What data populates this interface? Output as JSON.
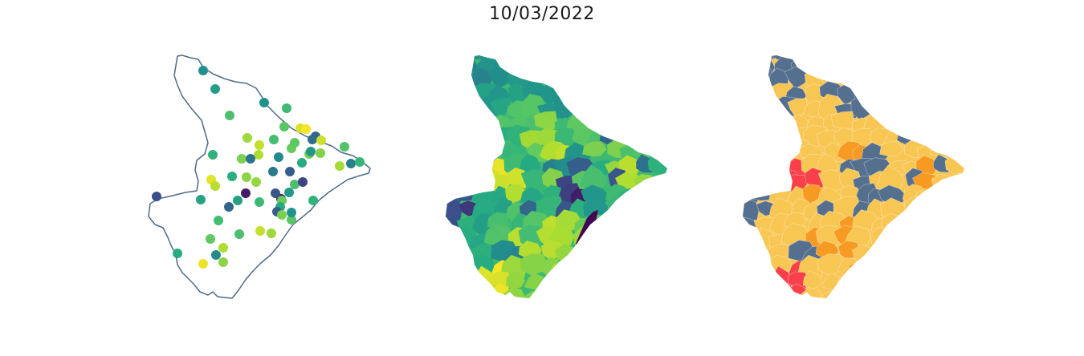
{
  "figure": {
    "title": "10/03/2022"
  },
  "colors": {
    "outline": "#4f6a86",
    "viridis": [
      "#440154",
      "#3b528b",
      "#21908c",
      "#27ad81",
      "#5ec962",
      "#aadc32",
      "#fde725"
    ],
    "classes": {
      "low": "#55708f",
      "moderate": "#f8c653",
      "high": "#f79a21",
      "very_high": "#f8404a"
    }
  },
  "panels": [
    {
      "name": "station-points-map"
    },
    {
      "name": "viridis-choropleth-map"
    },
    {
      "name": "risk-class-choropleth-map"
    }
  ],
  "stations": [
    {
      "id": 1,
      "v": 3.2
    },
    {
      "id": 2,
      "v": 3.6
    },
    {
      "id": 3,
      "v": 4.6
    },
    {
      "id": 4,
      "v": 3.3
    },
    {
      "id": 5,
      "v": 4.4
    },
    {
      "id": 6,
      "v": 5.6
    },
    {
      "id": 7,
      "v": 4.8
    },
    {
      "id": 8,
      "v": 6.2
    },
    {
      "id": 9,
      "v": 6.5
    },
    {
      "id": 10,
      "v": 2.6
    },
    {
      "id": 11,
      "v": 5.0
    },
    {
      "id": 12,
      "v": 6.0
    },
    {
      "id": 13,
      "v": 4.5
    },
    {
      "id": 14,
      "v": 5.8
    },
    {
      "id": 15,
      "v": 2.7
    },
    {
      "id": 16,
      "v": 4.9
    },
    {
      "id": 17,
      "v": 5.1
    },
    {
      "id": 18,
      "v": 5.3
    },
    {
      "id": 19,
      "v": 4.2
    },
    {
      "id": 20,
      "v": 5.2
    },
    {
      "id": 21,
      "v": 2.8
    },
    {
      "id": 22,
      "v": 3.1
    },
    {
      "id": 23,
      "v": 2.5
    },
    {
      "id": 24,
      "v": 6.3
    },
    {
      "id": 25,
      "v": 5.9
    },
    {
      "id": 26,
      "v": 4.1
    },
    {
      "id": 27,
      "v": 5.4
    },
    {
      "id": 28,
      "v": 4.0
    },
    {
      "id": 29,
      "v": 3.4
    },
    {
      "id": 30,
      "v": 6.1
    },
    {
      "id": 31,
      "v": 5.7
    },
    {
      "id": 32,
      "v": 4.7
    },
    {
      "id": 33,
      "v": 3.0
    },
    {
      "id": 34,
      "v": 4.3
    },
    {
      "id": 35,
      "v": 2.9
    },
    {
      "id": 36,
      "v": 5.5
    },
    {
      "id": 37,
      "v": 1.8
    },
    {
      "id": 38,
      "v": 1.6
    },
    {
      "id": 39,
      "v": 2.4
    },
    {
      "id": 40,
      "v": 3.5
    },
    {
      "id": 41,
      "v": 4.6
    },
    {
      "id": 42,
      "v": 2.2
    },
    {
      "id": 43,
      "v": 5.0
    },
    {
      "id": 44,
      "v": 3.8
    },
    {
      "id": 45,
      "v": 2.3
    },
    {
      "id": 46,
      "v": 4.4
    },
    {
      "id": 47,
      "v": 3.7
    },
    {
      "id": 48,
      "v": 2.6
    },
    {
      "id": 49,
      "v": 3.9
    },
    {
      "id": 50,
      "v": 4.5
    },
    {
      "id": 51,
      "v": 4.2
    },
    {
      "id": 52,
      "v": 2.5
    },
    {
      "id": 53,
      "v": 4.8
    },
    {
      "id": 54,
      "v": 5.2
    },
    {
      "id": 55,
      "v": 3.3
    },
    {
      "id": 56,
      "v": 4.6
    },
    {
      "id": 57,
      "v": 6.0
    },
    {
      "id": 58,
      "v": 5.6
    },
    {
      "id": 59,
      "v": 4.9
    },
    {
      "id": 60,
      "v": 5.8
    },
    {
      "id": 61,
      "v": 3.1
    },
    {
      "id": 62,
      "v": 4.0
    },
    {
      "id": 63,
      "v": 6.4
    },
    {
      "id": 64,
      "v": 5.4
    }
  ],
  "value_range": [
    1.5,
    6.6
  ]
}
